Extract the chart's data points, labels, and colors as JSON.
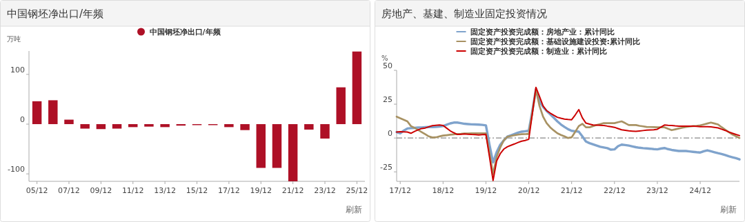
{
  "chart_data": [
    {
      "type": "bar",
      "title": "中国钢坯净出口/年频",
      "ylabel": "万吨",
      "legend": "top",
      "grid": false,
      "categories": [
        "05/12",
        null,
        "07/12",
        null,
        "09/12",
        null,
        "11/12",
        null,
        "13/12",
        null,
        "15/12",
        null,
        "17/12",
        null,
        "19/12",
        null,
        "21/12",
        null,
        "23/12",
        null,
        "25/12"
      ],
      "series": [
        {
          "name": "中国钢坯净出口/年频",
          "color": "#ae1026",
          "values": [
            46,
            48,
            9,
            -9,
            -10,
            -9,
            -6,
            -5,
            -6,
            -3,
            -2,
            -2,
            -6,
            -12,
            -88,
            -88,
            -115,
            -11,
            -29,
            74,
            146
          ]
        }
      ],
      "ylim": [
        -115,
        147
      ],
      "yticks": [
        -100,
        0,
        100
      ],
      "annotations": [
        "刷新"
      ]
    },
    {
      "type": "line",
      "title": "房地产、基建、制造业固定投资情况",
      "ylabel": "%",
      "legend": "top",
      "grid": false,
      "categories": [
        null,
        "17/12",
        null,
        null,
        null,
        null,
        null,
        null,
        null,
        null,
        null,
        null,
        null,
        "18/12",
        null,
        null,
        null,
        null,
        null,
        null,
        null,
        null,
        null,
        null,
        null,
        "19/12",
        null,
        null,
        null,
        null,
        null,
        null,
        null,
        null,
        null,
        null,
        null,
        "20/12",
        null,
        null,
        null,
        null,
        null,
        null,
        null,
        null,
        null,
        null,
        null,
        "21/12",
        null,
        null,
        null,
        null,
        null,
        null,
        null,
        null,
        null,
        null,
        null,
        "22/12",
        null,
        null,
        null,
        null,
        null,
        null,
        null,
        null,
        null,
        null,
        null,
        "23/12",
        null,
        null,
        null,
        null,
        null,
        null,
        null,
        null,
        null,
        null,
        null,
        "24/12",
        null,
        null,
        null,
        null,
        null,
        null,
        null,
        null,
        null,
        null,
        null
      ],
      "ylim": [
        -32,
        50
      ],
      "yticks": [
        -25,
        0,
        25,
        50
      ],
      "ref_lines": [
        {
          "axis": "y",
          "value": 0,
          "color": "#888888",
          "line_style": "dashdot"
        }
      ],
      "series": [
        {
          "name": "固定资产投资完成额：房地产业：累计同比",
          "color": "#7fa3cc",
          "values": [
            4.4,
            3.5,
            5.5,
            7,
            7.3,
            7.5,
            7.7,
            7.8,
            8,
            8.1,
            8.1,
            8.2,
            8.5,
            8.8,
            9.8,
            10.8,
            11.4,
            11.4,
            11,
            10.5,
            10.3,
            10.1,
            10,
            9.9,
            9.7,
            9.3,
            -5,
            -18,
            -10.5,
            -5,
            -1.8,
            1,
            2,
            3,
            4,
            4.7,
            5,
            5.3,
            20,
            36,
            27,
            23,
            20,
            17.5,
            15,
            12.3,
            10,
            8.2,
            6.5,
            5.3,
            5,
            4.7,
            1.2,
            -2.6,
            -3.8,
            -4.7,
            -5.6,
            -6.5,
            -7,
            -7.5,
            -8.6,
            -8.4,
            -6,
            -4.9,
            -5.2,
            -5.6,
            -6.2,
            -6.8,
            -7.2,
            -7.5,
            -7.7,
            -7.9,
            -8.2,
            -8.4,
            -7.8,
            -7.4,
            -8.2,
            -8.8,
            -9.2,
            -9.6,
            -9.6,
            -9.6,
            -9.9,
            -10.2,
            -10.5,
            -10.7,
            -9.8,
            -9.1,
            -9.8,
            -10.5,
            -11.2,
            -11.8,
            -12.6,
            -13.5,
            -14.2,
            -14.9,
            -15.8
          ]
        },
        {
          "name": "固定资产投资完成额：基础设施建设投资:累计同比",
          "color": "#a89263",
          "values": [
            15.8,
            14.6,
            13.5,
            12.3,
            8.8,
            7.5,
            6,
            4.4,
            2.8,
            1.2,
            0.4,
            0.5,
            1.2,
            1.8,
            2.1,
            2.4,
            2.7,
            3,
            3.1,
            3.3,
            3.4,
            3.5,
            3.5,
            3.5,
            3.5,
            3.5,
            -11,
            -26.7,
            -14,
            -7,
            -1.8,
            0.9,
            1.5,
            2.1,
            2.5,
            2.8,
            2.9,
            3,
            19,
            35.6,
            23.7,
            15.8,
            11,
            7.9,
            5.6,
            3.5,
            2.3,
            1.2,
            0,
            0.5,
            4.5,
            8.8,
            10.5,
            7.9,
            7.9,
            8.8,
            9.6,
            10.3,
            11,
            11,
            11,
            11,
            11.7,
            12.3,
            11,
            9.6,
            9.6,
            9.6,
            9,
            8.6,
            8.2,
            8.1,
            8,
            7.9,
            7.9,
            7.9,
            6.8,
            5.8,
            6.4,
            7,
            7.6,
            8.2,
            8.5,
            8.8,
            9,
            9.3,
            10,
            10.7,
            11.4,
            10.7,
            10,
            8,
            6.1,
            4.3,
            2.6,
            1.3,
            0
          ]
        },
        {
          "name": "固定资产投资完成额：制造业：累计同比",
          "color": "#cc0000",
          "values": [
            4.4,
            4.7,
            4.6,
            4.4,
            3.5,
            4.9,
            6,
            7,
            7.4,
            8.3,
            9.1,
            9.4,
            9.6,
            9.3,
            7.3,
            5.3,
            3.9,
            2.6,
            2.8,
            3,
            2.8,
            2.6,
            2.5,
            2.3,
            2.5,
            2.6,
            -14,
            -31.4,
            -17,
            -11.6,
            -8.2,
            -6.5,
            -5.4,
            -4.4,
            -3.3,
            -2.3,
            -1.8,
            -0.9,
            18,
            37.4,
            30.7,
            23.7,
            20.2,
            18.4,
            16.8,
            15.3,
            14.6,
            14,
            13.7,
            13.5,
            17,
            21,
            14.9,
            11,
            10.3,
            9.6,
            9.5,
            9.4,
            9.3,
            8.8,
            8.4,
            7.9,
            7,
            6.1,
            5.7,
            5.3,
            5.1,
            4.9,
            5.2,
            5.5,
            5.8,
            6,
            6.1,
            6.5,
            8,
            9.6,
            9.4,
            9.3,
            9,
            8.8,
            8.8,
            8.8,
            8.8,
            8.8,
            8.6,
            8.4,
            8.3,
            8.3,
            8.2,
            7.9,
            7.5,
            6.5,
            5.6,
            4.5,
            3.5,
            2.6,
            1.8
          ]
        }
      ],
      "annotations": [
        "刷新"
      ]
    }
  ]
}
